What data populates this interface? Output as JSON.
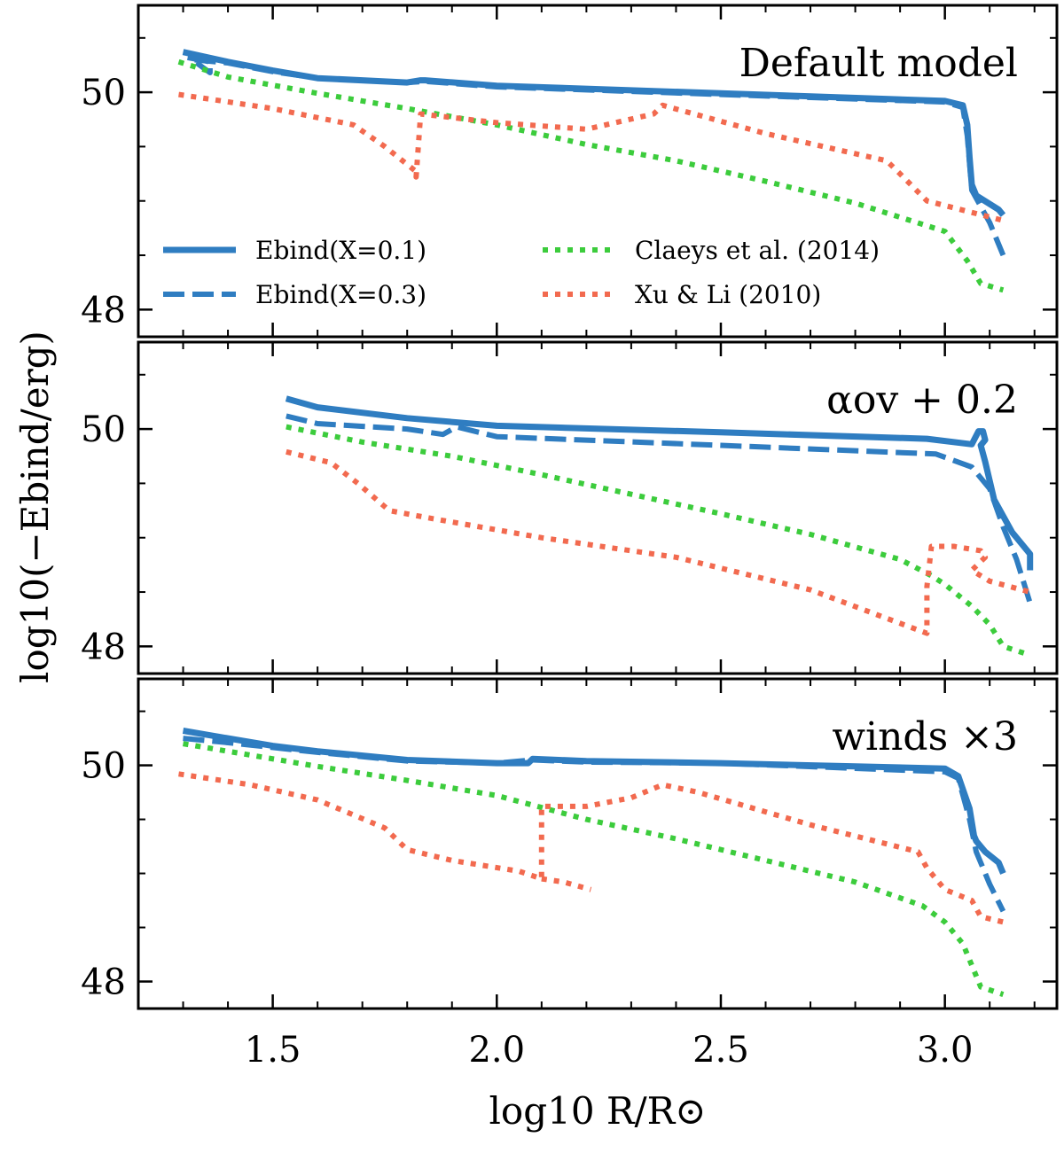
{
  "chart_data": {
    "type": "line",
    "xlabel": "log10 R/R⊙",
    "ylabel": "log10(−Ebind/erg)",
    "xlim": [
      1.2,
      3.25
    ],
    "ylim": [
      47.75,
      50.8
    ],
    "x_ticks": [
      1.5,
      2.0,
      2.5,
      3.0
    ],
    "x_tick_labels": [
      "1.5",
      "2.0",
      "2.5",
      "3.0"
    ],
    "y_ticks": [
      48,
      50
    ],
    "y_tick_labels": [
      "48",
      "50"
    ],
    "colors": {
      "ebind": "#2f7dc1",
      "claeys": "#3ccc3c",
      "xu": "#f26a4f"
    },
    "legend": {
      "placement": "lower-left",
      "entries": [
        {
          "key": "ebind_x01",
          "label": "Ebind(X=0.1)",
          "style": "solid",
          "color": "#2f7dc1"
        },
        {
          "key": "claeys",
          "label": "Claeys et al. (2014)",
          "style": "dotted",
          "color": "#3ccc3c"
        },
        {
          "key": "ebind_x03",
          "label": "Ebind(X=0.3)",
          "style": "dashed",
          "color": "#2f7dc1"
        },
        {
          "key": "xu",
          "label": "Xu & Li (2010)",
          "style": "dotted",
          "color": "#f26a4f"
        }
      ]
    },
    "panels": [
      {
        "label": "Default model",
        "series": [
          {
            "key": "ebind_x01",
            "x": [
              1.3,
              1.4,
              1.5,
              1.6,
              1.8,
              1.83,
              1.84,
              2.0,
              2.5,
              3.0,
              3.04,
              3.05,
              3.055,
              3.06,
              3.07,
              3.12,
              3.13
            ],
            "y": [
              50.37,
              50.28,
              50.2,
              50.13,
              50.09,
              50.11,
              50.11,
              50.06,
              49.99,
              49.92,
              49.88,
              49.7,
              49.4,
              49.15,
              49.05,
              48.92,
              48.87
            ]
          },
          {
            "key": "ebind_x03",
            "x": [
              1.31,
              1.36,
              1.36,
              1.32,
              1.4,
              1.5,
              1.6,
              1.8,
              1.84,
              2.0,
              2.5,
              3.0,
              3.04,
              3.05,
              3.06,
              3.1,
              3.13
            ],
            "y": [
              50.32,
              50.28,
              50.18,
              50.3,
              50.27,
              50.19,
              50.13,
              50.09,
              50.1,
              50.05,
              49.98,
              49.91,
              49.86,
              49.6,
              49.1,
              48.8,
              48.5
            ]
          },
          {
            "key": "claeys",
            "x": [
              1.29,
              1.4,
              1.6,
              1.8,
              2.0,
              2.2,
              2.4,
              2.6,
              2.8,
              3.0,
              3.05,
              3.08,
              3.13
            ],
            "y": [
              50.28,
              50.14,
              49.99,
              49.85,
              49.7,
              49.52,
              49.37,
              49.18,
              48.98,
              48.72,
              48.45,
              48.24,
              48.18
            ]
          },
          {
            "key": "xu",
            "x": [
              1.29,
              1.5,
              1.68,
              1.75,
              1.82,
              1.82,
              1.83,
              2.0,
              2.2,
              2.35,
              2.37,
              2.6,
              2.87,
              2.9,
              2.96,
              3.13
            ],
            "y": [
              49.98,
              49.85,
              49.7,
              49.5,
              49.27,
              49.22,
              49.8,
              49.72,
              49.66,
              49.8,
              49.88,
              49.62,
              49.37,
              49.25,
              49.0,
              48.82
            ]
          }
        ]
      },
      {
        "label": "αov + 0.2",
        "series": [
          {
            "key": "ebind_x01",
            "x": [
              1.53,
              1.6,
              1.8,
              2.0,
              2.5,
              2.96,
              3.06,
              3.075,
              3.085,
              3.09,
              3.08,
              3.09,
              3.11,
              3.15,
              3.19,
              3.19
            ],
            "y": [
              50.28,
              50.2,
              50.1,
              50.03,
              49.97,
              49.91,
              49.86,
              49.98,
              49.98,
              49.9,
              49.85,
              49.7,
              49.35,
              49.05,
              48.85,
              48.7
            ]
          },
          {
            "key": "ebind_x03",
            "x": [
              1.53,
              1.6,
              1.8,
              1.88,
              1.91,
              2.0,
              2.5,
              2.98,
              3.06,
              3.1,
              3.13,
              3.16,
              3.19
            ],
            "y": [
              50.12,
              50.05,
              50.0,
              49.95,
              50.02,
              49.93,
              49.85,
              49.77,
              49.65,
              49.45,
              49.1,
              48.8,
              48.4
            ]
          },
          {
            "key": "claeys",
            "x": [
              1.53,
              1.7,
              1.9,
              2.1,
              2.3,
              2.5,
              2.7,
              2.9,
              2.97,
              3.0,
              3.03,
              3.06,
              3.1,
              3.13,
              3.19
            ],
            "y": [
              50.02,
              49.88,
              49.75,
              49.58,
              49.4,
              49.22,
              49.03,
              48.8,
              48.65,
              48.57,
              48.47,
              48.37,
              48.2,
              48.0,
              47.92
            ]
          },
          {
            "key": "xu",
            "x": [
              1.53,
              1.63,
              1.69,
              1.76,
              1.85,
              2.1,
              2.4,
              2.7,
              2.96,
              2.96,
              2.97,
              3.02,
              3.08,
              3.09,
              3.06,
              3.1,
              3.19
            ],
            "y": [
              49.79,
              49.69,
              49.5,
              49.25,
              49.18,
              49.0,
              48.82,
              48.52,
              48.12,
              48.55,
              48.92,
              48.92,
              48.88,
              48.82,
              48.7,
              48.6,
              48.5
            ]
          }
        ]
      },
      {
        "label": "winds ×3",
        "series": [
          {
            "key": "ebind_x01",
            "x": [
              1.3,
              1.4,
              1.5,
              1.6,
              1.8,
              2.0,
              2.07,
              2.08,
              2.2,
              2.5,
              2.8,
              3.0,
              3.03,
              3.055,
              3.065,
              3.07,
              3.09,
              3.12,
              3.13
            ],
            "y": [
              50.32,
              50.25,
              50.18,
              50.13,
              50.05,
              50.02,
              50.02,
              50.06,
              50.04,
              50.02,
              49.99,
              49.97,
              49.9,
              49.6,
              49.35,
              49.3,
              49.2,
              49.1,
              49.0
            ]
          },
          {
            "key": "ebind_x03",
            "x": [
              1.3,
              1.4,
              1.6,
              1.8,
              2.0,
              2.08,
              2.2,
              2.5,
              3.0,
              3.03,
              3.055,
              3.07,
              3.1,
              3.13
            ],
            "y": [
              50.25,
              50.21,
              50.12,
              50.04,
              50.02,
              50.05,
              50.03,
              50.02,
              49.94,
              49.88,
              49.5,
              49.2,
              48.9,
              48.65
            ]
          },
          {
            "key": "claeys",
            "x": [
              1.3,
              1.4,
              1.6,
              1.8,
              2.0,
              2.2,
              2.4,
              2.6,
              2.8,
              2.95,
              3.0,
              3.04,
              3.08,
              3.13
            ],
            "y": [
              50.2,
              50.13,
              49.99,
              49.86,
              49.72,
              49.5,
              49.32,
              49.12,
              48.92,
              48.7,
              48.55,
              48.35,
              47.95,
              47.88
            ]
          },
          {
            "key": "xu",
            "x": [
              1.29,
              1.45,
              1.6,
              1.75,
              1.8,
              1.9,
              2.05,
              2.1,
              2.1,
              2.2,
              2.3,
              2.37,
              2.45,
              2.7,
              2.94,
              2.96,
              3.0,
              3.06,
              3.08,
              3.13
            ],
            "y": [
              49.92,
              49.82,
              49.68,
              49.42,
              49.22,
              49.12,
              49.02,
              48.95,
              49.62,
              49.62,
              49.7,
              49.82,
              49.75,
              49.45,
              49.2,
              49.05,
              48.85,
              48.75,
              48.6,
              48.55
            ]
          },
          {
            "key": "xu_branch",
            "x": [
              2.1,
              2.15,
              2.21
            ],
            "y": [
              48.95,
              48.92,
              48.85
            ]
          }
        ]
      }
    ]
  }
}
